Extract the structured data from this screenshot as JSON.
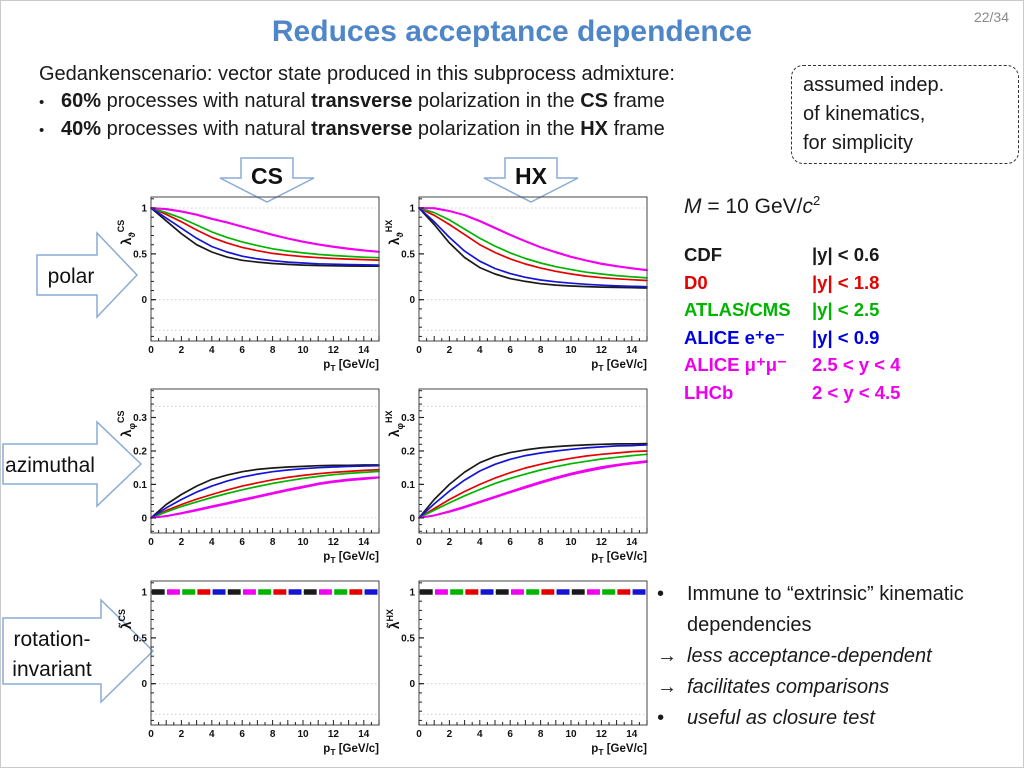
{
  "slide": {
    "page_number": "22/34",
    "title": "Reduces acceptance dependence",
    "intro_line": "Gedankenscenario: vector state produced in this subprocess admixture:",
    "intro_bullets": [
      {
        "marker": "•",
        "segments": [
          {
            "t": "60%",
            "b": true
          },
          {
            "t": " processes with natural ",
            "b": false
          },
          {
            "t": "transverse",
            "b": true
          },
          {
            "t": " polarization in the ",
            "b": false
          },
          {
            "t": "CS",
            "b": true
          },
          {
            "t": " frame",
            "b": false
          }
        ]
      },
      {
        "marker": "•",
        "segments": [
          {
            "t": "40%",
            "b": true
          },
          {
            "t": " processes with natural ",
            "b": false
          },
          {
            "t": "transverse",
            "b": true
          },
          {
            "t": " polarization in the ",
            "b": false
          },
          {
            "t": "HX",
            "b": true
          },
          {
            "t": " frame",
            "b": false
          }
        ]
      }
    ],
    "note_box_lines": [
      "assumed indep.",
      "of kinematics,",
      "for simplicity"
    ],
    "frame_arrow_cs": "CS",
    "frame_arrow_hx": "HX",
    "row_arrow_polar": "polar",
    "row_arrow_azimuthal": "azimuthal",
    "row_arrow_rotation_line1": "rotation-",
    "row_arrow_rotation_line2": "invariant",
    "mass_label": {
      "m": "M",
      "mid": " = 10 GeV/",
      "c": "c",
      "sup": "2"
    },
    "legend_rows": [
      {
        "name": "CDF",
        "range": "|y| < 0.6",
        "color": "#1a1a1a"
      },
      {
        "name": "D0",
        "range": "|y| < 1.8",
        "color": "#e60000"
      },
      {
        "name": "ATLAS/CMS",
        "range": "|y| < 2.5",
        "color": "#00b400"
      },
      {
        "name": "ALICE e⁺e⁻",
        "range": "|y| < 0.9",
        "color": "#0000dd"
      },
      {
        "name": "ALICE μ⁺μ⁻",
        "range": "2.5 < y < 4",
        "color": "#ee00ee"
      },
      {
        "name": "LHCb",
        "range": "2 < y < 4.5",
        "color": "#ee00ee"
      }
    ],
    "conclusions": [
      {
        "marker": "•",
        "text": "Immune to “extrinsic” kinematic dependencies",
        "italic": false
      },
      {
        "marker": "→",
        "text": "less acceptance-dependent",
        "italic": true
      },
      {
        "marker": "→",
        "text": "facilitates comparisons",
        "italic": true
      },
      {
        "marker": "•",
        "text": "useful as closure test",
        "italic": true
      }
    ],
    "colors": {
      "title": "#4e86c8",
      "arrow_stroke": "#8aabd6",
      "page_number": "#8a8a8a"
    }
  },
  "chart_data": [
    {
      "id": "lambda_theta_CS",
      "type": "line",
      "ylabel": {
        "base": "λ",
        "sub": "ϑ",
        "sup": "CS"
      },
      "xlabel": {
        "base": "p",
        "sub": "T",
        "rest": " [GeV/c]"
      },
      "xlim": [
        0,
        15
      ],
      "ylim": [
        -0.45,
        1.12
      ],
      "yticks": [
        {
          "v": 0,
          "label": "0"
        },
        {
          "v": 0.5,
          "label": "0.5"
        },
        {
          "v": 1,
          "label": "1"
        }
      ],
      "yminor": 0.1,
      "xticks": [
        0,
        2,
        4,
        6,
        8,
        10,
        12,
        14
      ],
      "xminor": 0.5,
      "grid_y": [
        1,
        0,
        -0.3333
      ],
      "x": [
        0,
        1,
        2,
        3,
        4,
        5,
        6,
        7,
        8,
        9,
        10,
        11,
        12,
        13,
        14,
        15
      ],
      "series": [
        {
          "name": "CDF",
          "color": "#1a1a1a",
          "values": [
            1,
            0.86,
            0.72,
            0.6,
            0.52,
            0.465,
            0.43,
            0.41,
            0.395,
            0.385,
            0.378,
            0.373,
            0.37,
            0.368,
            0.367,
            0.366
          ]
        },
        {
          "name": "D0",
          "color": "#e60000",
          "values": [
            1,
            0.93,
            0.85,
            0.76,
            0.68,
            0.62,
            0.57,
            0.535,
            0.505,
            0.485,
            0.47,
            0.458,
            0.45,
            0.443,
            0.437,
            0.432
          ]
        },
        {
          "name": "ATLAS/CMS",
          "color": "#00b400",
          "values": [
            1,
            0.95,
            0.89,
            0.815,
            0.74,
            0.68,
            0.63,
            0.59,
            0.555,
            0.53,
            0.51,
            0.494,
            0.482,
            0.472,
            0.464,
            0.458
          ]
        },
        {
          "name": "ALICE e+e-",
          "color": "#1414d6",
          "values": [
            1,
            0.89,
            0.78,
            0.67,
            0.58,
            0.52,
            0.475,
            0.445,
            0.425,
            0.41,
            0.4,
            0.392,
            0.387,
            0.383,
            0.38,
            0.378
          ]
        },
        {
          "name": "ALICE mu+mu-",
          "color": "#f000f0",
          "values": [
            1,
            0.99,
            0.965,
            0.93,
            0.885,
            0.845,
            0.8,
            0.755,
            0.71,
            0.67,
            0.635,
            0.605,
            0.58,
            0.558,
            0.54,
            0.525
          ]
        },
        {
          "name": "LHCb",
          "color": "#f000f0",
          "values": [
            1,
            0.985,
            0.96,
            0.925,
            0.88,
            0.84,
            0.795,
            0.75,
            0.705,
            0.665,
            0.63,
            0.6,
            0.575,
            0.553,
            0.535,
            0.52
          ]
        }
      ]
    },
    {
      "id": "lambda_theta_HX",
      "type": "line",
      "ylabel": {
        "base": "λ",
        "sub": "ϑ",
        "sup": "HX"
      },
      "xlabel": {
        "base": "p",
        "sub": "T",
        "rest": " [GeV/c]"
      },
      "xlim": [
        0,
        15
      ],
      "ylim": [
        -0.45,
        1.12
      ],
      "yticks": [
        {
          "v": 0,
          "label": "0"
        },
        {
          "v": 0.5,
          "label": "0.5"
        },
        {
          "v": 1,
          "label": "1"
        }
      ],
      "yminor": 0.1,
      "xticks": [
        0,
        2,
        4,
        6,
        8,
        10,
        12,
        14
      ],
      "xminor": 0.5,
      "grid_y": [
        1,
        0,
        -0.3333
      ],
      "x": [
        0,
        1,
        2,
        3,
        4,
        5,
        6,
        7,
        8,
        9,
        10,
        11,
        12,
        13,
        14,
        15
      ],
      "series": [
        {
          "name": "CDF",
          "color": "#1a1a1a",
          "values": [
            1,
            0.82,
            0.62,
            0.46,
            0.35,
            0.28,
            0.23,
            0.2,
            0.175,
            0.16,
            0.15,
            0.143,
            0.138,
            0.134,
            0.131,
            0.128
          ]
        },
        {
          "name": "D0",
          "color": "#e60000",
          "values": [
            1,
            0.92,
            0.82,
            0.71,
            0.6,
            0.515,
            0.445,
            0.39,
            0.345,
            0.31,
            0.28,
            0.258,
            0.24,
            0.228,
            0.218,
            0.21
          ]
        },
        {
          "name": "ATLAS/CMS",
          "color": "#00b400",
          "values": [
            1,
            0.95,
            0.87,
            0.77,
            0.67,
            0.585,
            0.51,
            0.45,
            0.4,
            0.36,
            0.328,
            0.3,
            0.28,
            0.263,
            0.25,
            0.238
          ]
        },
        {
          "name": "ALICE e+e-",
          "color": "#1414d6",
          "values": [
            1,
            0.85,
            0.68,
            0.53,
            0.42,
            0.34,
            0.285,
            0.245,
            0.215,
            0.195,
            0.18,
            0.168,
            0.158,
            0.151,
            0.146,
            0.142
          ]
        },
        {
          "name": "ALICE mu+mu-",
          "color": "#f000f0",
          "values": [
            1,
            1.0,
            0.97,
            0.925,
            0.86,
            0.785,
            0.71,
            0.64,
            0.575,
            0.52,
            0.47,
            0.43,
            0.395,
            0.368,
            0.345,
            0.325
          ]
        },
        {
          "name": "LHCb",
          "color": "#f000f0",
          "values": [
            1,
            0.995,
            0.965,
            0.92,
            0.855,
            0.78,
            0.705,
            0.635,
            0.57,
            0.515,
            0.465,
            0.425,
            0.39,
            0.363,
            0.34,
            0.32
          ]
        }
      ]
    },
    {
      "id": "lambda_phi_CS",
      "type": "line",
      "ylabel": {
        "base": "λ",
        "sub": "φ",
        "sup": "CS"
      },
      "xlabel": {
        "base": "p",
        "sub": "T",
        "rest": " [GeV/c]"
      },
      "xlim": [
        0,
        15
      ],
      "ylim": [
        -0.045,
        0.385
      ],
      "yticks": [
        {
          "v": 0,
          "label": "0"
        },
        {
          "v": 0.1,
          "label": "0.1"
        },
        {
          "v": 0.2,
          "label": "0.2"
        },
        {
          "v": 0.3,
          "label": "0.3"
        }
      ],
      "yminor": 0.02,
      "xticks": [
        0,
        2,
        4,
        6,
        8,
        10,
        12,
        14
      ],
      "xminor": 0.5,
      "grid_y": [
        0.3333,
        0
      ],
      "x": [
        0,
        1,
        2,
        3,
        4,
        5,
        6,
        7,
        8,
        9,
        10,
        11,
        12,
        13,
        14,
        15
      ],
      "series": [
        {
          "name": "CDF",
          "color": "#1a1a1a",
          "values": [
            0,
            0.04,
            0.07,
            0.095,
            0.115,
            0.128,
            0.138,
            0.145,
            0.149,
            0.152,
            0.154,
            0.156,
            0.157,
            0.157,
            0.158,
            0.158
          ]
        },
        {
          "name": "D0",
          "color": "#e60000",
          "values": [
            0,
            0.022,
            0.04,
            0.056,
            0.07,
            0.083,
            0.095,
            0.105,
            0.114,
            0.121,
            0.127,
            0.132,
            0.136,
            0.139,
            0.142,
            0.144
          ]
        },
        {
          "name": "ATLAS/CMS",
          "color": "#00b400",
          "values": [
            0,
            0.018,
            0.034,
            0.048,
            0.061,
            0.073,
            0.084,
            0.094,
            0.103,
            0.111,
            0.118,
            0.124,
            0.129,
            0.133,
            0.136,
            0.139
          ]
        },
        {
          "name": "ALICE e+e-",
          "color": "#1414d6",
          "values": [
            0,
            0.03,
            0.055,
            0.077,
            0.095,
            0.11,
            0.122,
            0.131,
            0.138,
            0.143,
            0.147,
            0.15,
            0.152,
            0.154,
            0.155,
            0.156
          ]
        },
        {
          "name": "ALICE mu+mu-",
          "color": "#f000f0",
          "values": [
            0,
            0.006,
            0.015,
            0.025,
            0.035,
            0.045,
            0.055,
            0.065,
            0.075,
            0.085,
            0.094,
            0.103,
            0.11,
            0.115,
            0.119,
            0.122
          ]
        },
        {
          "name": "LHCb",
          "color": "#f000f0",
          "values": [
            0,
            0.005,
            0.013,
            0.022,
            0.032,
            0.042,
            0.052,
            0.062,
            0.072,
            0.082,
            0.091,
            0.1,
            0.107,
            0.112,
            0.116,
            0.12
          ]
        }
      ]
    },
    {
      "id": "lambda_phi_HX",
      "type": "line",
      "ylabel": {
        "base": "λ",
        "sub": "φ",
        "sup": "HX"
      },
      "xlabel": {
        "base": "p",
        "sub": "T",
        "rest": " [GeV/c]"
      },
      "xlim": [
        0,
        15
      ],
      "ylim": [
        -0.045,
        0.385
      ],
      "yticks": [
        {
          "v": 0,
          "label": "0"
        },
        {
          "v": 0.1,
          "label": "0.1"
        },
        {
          "v": 0.2,
          "label": "0.2"
        },
        {
          "v": 0.3,
          "label": "0.3"
        }
      ],
      "yminor": 0.02,
      "xticks": [
        0,
        2,
        4,
        6,
        8,
        10,
        12,
        14
      ],
      "xminor": 0.5,
      "grid_y": [
        0.3333,
        0
      ],
      "x": [
        0,
        1,
        2,
        3,
        4,
        5,
        6,
        7,
        8,
        9,
        10,
        11,
        12,
        13,
        14,
        15
      ],
      "series": [
        {
          "name": "CDF",
          "color": "#1a1a1a",
          "values": [
            0,
            0.055,
            0.1,
            0.137,
            0.165,
            0.183,
            0.195,
            0.203,
            0.209,
            0.213,
            0.216,
            0.218,
            0.22,
            0.221,
            0.221,
            0.222
          ]
        },
        {
          "name": "D0",
          "color": "#e60000",
          "values": [
            0,
            0.028,
            0.055,
            0.079,
            0.1,
            0.119,
            0.135,
            0.149,
            0.16,
            0.17,
            0.178,
            0.185,
            0.19,
            0.194,
            0.198,
            0.2
          ]
        },
        {
          "name": "ATLAS/CMS",
          "color": "#00b400",
          "values": [
            0,
            0.023,
            0.045,
            0.066,
            0.085,
            0.103,
            0.118,
            0.131,
            0.143,
            0.153,
            0.162,
            0.169,
            0.176,
            0.181,
            0.186,
            0.19
          ]
        },
        {
          "name": "ALICE e+e-",
          "color": "#1414d6",
          "values": [
            0,
            0.042,
            0.08,
            0.113,
            0.14,
            0.16,
            0.175,
            0.186,
            0.194,
            0.2,
            0.205,
            0.209,
            0.212,
            0.215,
            0.216,
            0.218
          ]
        },
        {
          "name": "ALICE mu+mu-",
          "color": "#f000f0",
          "values": [
            0,
            0.008,
            0.02,
            0.034,
            0.049,
            0.064,
            0.079,
            0.094,
            0.108,
            0.121,
            0.133,
            0.143,
            0.152,
            0.159,
            0.165,
            0.17
          ]
        },
        {
          "name": "LHCb",
          "color": "#f000f0",
          "values": [
            0,
            0.007,
            0.018,
            0.031,
            0.046,
            0.061,
            0.076,
            0.09,
            0.104,
            0.117,
            0.129,
            0.139,
            0.148,
            0.156,
            0.162,
            0.167
          ]
        }
      ]
    },
    {
      "id": "lambda_tilde_CS",
      "type": "dashed-flat",
      "ylabel": {
        "base": "λ̃",
        "sub": "",
        "sup": "CS"
      },
      "xlabel": {
        "base": "p",
        "sub": "T",
        "rest": " [GeV/c]"
      },
      "xlim": [
        0,
        15
      ],
      "ylim": [
        -0.45,
        1.12
      ],
      "yticks": [
        {
          "v": 0,
          "label": "0"
        },
        {
          "v": 0.5,
          "label": "0.5"
        },
        {
          "v": 1,
          "label": "1"
        }
      ],
      "yminor": 0.1,
      "xticks": [
        0,
        2,
        4,
        6,
        8,
        10,
        12,
        14
      ],
      "xminor": 0.5,
      "grid_y": [
        1,
        0,
        -0.3333
      ],
      "flat_value": 1,
      "n_segments": 15,
      "segment_colors": [
        "#1a1a1a",
        "#f000f0",
        "#00b400",
        "#e60000",
        "#1414d6"
      ]
    },
    {
      "id": "lambda_tilde_HX",
      "type": "dashed-flat",
      "ylabel": {
        "base": "λ̃",
        "sub": "",
        "sup": "HX"
      },
      "xlabel": {
        "base": "p",
        "sub": "T",
        "rest": " [GeV/c]"
      },
      "xlim": [
        0,
        15
      ],
      "ylim": [
        -0.45,
        1.12
      ],
      "yticks": [
        {
          "v": 0,
          "label": "0"
        },
        {
          "v": 0.5,
          "label": "0.5"
        },
        {
          "v": 1,
          "label": "1"
        }
      ],
      "yminor": 0.1,
      "xticks": [
        0,
        2,
        4,
        6,
        8,
        10,
        12,
        14
      ],
      "xminor": 0.5,
      "grid_y": [
        1,
        0,
        -0.3333
      ],
      "flat_value": 1,
      "n_segments": 15,
      "segment_colors": [
        "#1a1a1a",
        "#f000f0",
        "#00b400",
        "#e60000",
        "#1414d6"
      ]
    }
  ]
}
